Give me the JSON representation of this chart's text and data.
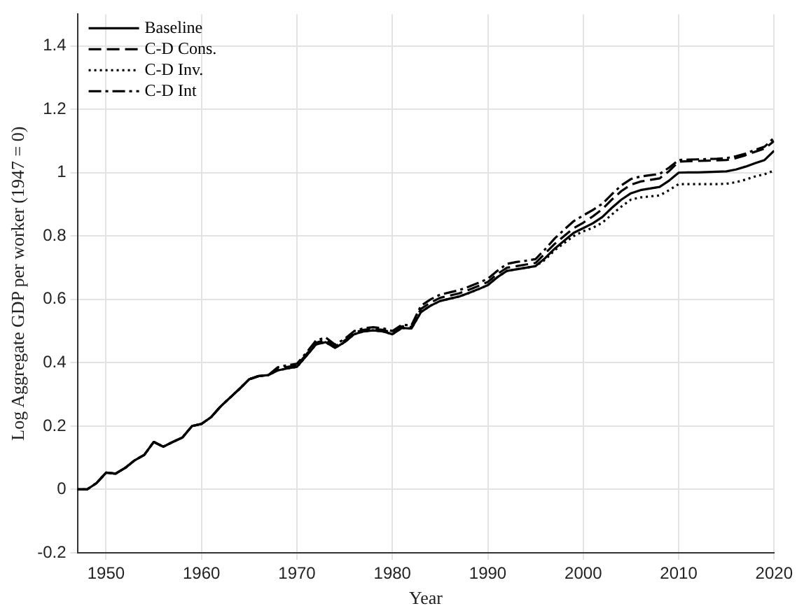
{
  "chart_data": {
    "type": "line",
    "xlabel": "Year",
    "ylabel": "Log Aggregate GDP per worker (1947 = 0)",
    "x": [
      1947,
      1948,
      1949,
      1950,
      1951,
      1952,
      1953,
      1954,
      1955,
      1956,
      1957,
      1958,
      1959,
      1960,
      1961,
      1962,
      1963,
      1964,
      1965,
      1966,
      1967,
      1968,
      1969,
      1970,
      1971,
      1972,
      1973,
      1974,
      1975,
      1976,
      1977,
      1978,
      1979,
      1980,
      1981,
      1982,
      1983,
      1984,
      1985,
      1986,
      1987,
      1988,
      1989,
      1990,
      1991,
      1992,
      1993,
      1994,
      1995,
      1996,
      1997,
      1998,
      1999,
      2000,
      2001,
      2002,
      2003,
      2004,
      2005,
      2006,
      2007,
      2008,
      2009,
      2010,
      2011,
      2012,
      2013,
      2014,
      2015,
      2016,
      2017,
      2018,
      2019,
      2020
    ],
    "series": [
      {
        "name": "Baseline",
        "color": "#000000",
        "line_style": "solid",
        "values": [
          0,
          0,
          0.02,
          0.053,
          0.05,
          0.068,
          0.092,
          0.109,
          0.15,
          0.135,
          0.15,
          0.164,
          0.2,
          0.207,
          0.228,
          0.262,
          0.29,
          0.318,
          0.348,
          0.358,
          0.361,
          0.376,
          0.382,
          0.387,
          0.422,
          0.458,
          0.465,
          0.447,
          0.465,
          0.49,
          0.499,
          0.502,
          0.499,
          0.49,
          0.51,
          0.508,
          0.56,
          0.58,
          0.595,
          0.602,
          0.609,
          0.62,
          0.632,
          0.645,
          0.67,
          0.69,
          0.695,
          0.7,
          0.705,
          0.73,
          0.76,
          0.785,
          0.81,
          0.825,
          0.84,
          0.86,
          0.889,
          0.915,
          0.935,
          0.945,
          0.95,
          0.955,
          0.975,
          1.0,
          1.001,
          1.001,
          1.002,
          1.003,
          1.004,
          1.01,
          1.019,
          1.03,
          1.04,
          1.069
        ]
      },
      {
        "name": "C-D Cons.",
        "color": "#000000",
        "line_style": "dashed",
        "values": [
          0,
          0,
          0.02,
          0.053,
          0.05,
          0.068,
          0.092,
          0.109,
          0.15,
          0.135,
          0.15,
          0.164,
          0.2,
          0.207,
          0.228,
          0.262,
          0.29,
          0.318,
          0.348,
          0.358,
          0.361,
          0.381,
          0.387,
          0.392,
          0.427,
          0.463,
          0.472,
          0.452,
          0.47,
          0.495,
          0.504,
          0.507,
          0.504,
          0.495,
          0.515,
          0.513,
          0.57,
          0.59,
          0.605,
          0.612,
          0.619,
          0.63,
          0.642,
          0.655,
          0.68,
          0.7,
          0.705,
          0.71,
          0.715,
          0.745,
          0.775,
          0.8,
          0.825,
          0.842,
          0.862,
          0.885,
          0.915,
          0.942,
          0.962,
          0.972,
          0.977,
          0.982,
          1.005,
          1.035,
          1.036,
          1.037,
          1.038,
          1.039,
          1.04,
          1.046,
          1.055,
          1.066,
          1.076,
          1.1
        ]
      },
      {
        "name": "C-D Inv.",
        "color": "#000000",
        "line_style": "dotted",
        "values": [
          0,
          0,
          0.02,
          0.053,
          0.05,
          0.068,
          0.092,
          0.109,
          0.15,
          0.135,
          0.15,
          0.164,
          0.2,
          0.207,
          0.228,
          0.262,
          0.29,
          0.318,
          0.348,
          0.358,
          0.361,
          0.376,
          0.382,
          0.387,
          0.422,
          0.458,
          0.465,
          0.447,
          0.465,
          0.49,
          0.499,
          0.502,
          0.499,
          0.49,
          0.51,
          0.508,
          0.56,
          0.58,
          0.595,
          0.602,
          0.609,
          0.62,
          0.632,
          0.645,
          0.67,
          0.69,
          0.695,
          0.7,
          0.705,
          0.725,
          0.755,
          0.778,
          0.8,
          0.815,
          0.826,
          0.842,
          0.868,
          0.893,
          0.915,
          0.922,
          0.925,
          0.928,
          0.945,
          0.964,
          0.964,
          0.964,
          0.964,
          0.964,
          0.965,
          0.97,
          0.978,
          0.988,
          0.995,
          1.007
        ]
      },
      {
        "name": "C-D Int",
        "color": "#000000",
        "line_style": "dashdot",
        "values": [
          0,
          0,
          0.02,
          0.053,
          0.05,
          0.068,
          0.092,
          0.109,
          0.15,
          0.135,
          0.15,
          0.164,
          0.2,
          0.207,
          0.228,
          0.262,
          0.29,
          0.318,
          0.348,
          0.358,
          0.361,
          0.386,
          0.392,
          0.397,
          0.432,
          0.47,
          0.48,
          0.457,
          0.475,
          0.5,
          0.509,
          0.512,
          0.509,
          0.5,
          0.52,
          0.518,
          0.58,
          0.6,
          0.615,
          0.622,
          0.629,
          0.64,
          0.652,
          0.665,
          0.69,
          0.712,
          0.718,
          0.722,
          0.727,
          0.758,
          0.792,
          0.82,
          0.847,
          0.865,
          0.882,
          0.902,
          0.932,
          0.96,
          0.98,
          0.988,
          0.992,
          0.996,
          1.016,
          1.04,
          1.041,
          1.042,
          1.043,
          1.044,
          1.046,
          1.052,
          1.06,
          1.072,
          1.082,
          1.11
        ]
      }
    ],
    "xlim": [
      1947,
      2020
    ],
    "xticks": [
      1950,
      1960,
      1970,
      1980,
      1990,
      2000,
      2010,
      2020
    ],
    "ylim": [
      -0.2,
      1.5
    ],
    "yticks": [
      -0.2,
      0,
      0.2,
      0.4,
      0.6,
      0.8,
      1,
      1.2,
      1.4
    ],
    "grid": true,
    "legend": "top left",
    "marker": "none"
  }
}
